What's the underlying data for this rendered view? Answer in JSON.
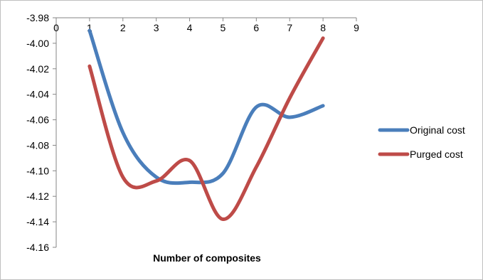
{
  "chart_data": {
    "type": "line",
    "title": "",
    "xlabel": "Number of composites",
    "ylabel": "",
    "xlim": [
      0,
      9
    ],
    "ylim": [
      -4.16,
      -3.98
    ],
    "x_ticks": [
      "0",
      "1",
      "2",
      "3",
      "4",
      "5",
      "6",
      "7",
      "8",
      "9"
    ],
    "y_ticks": [
      "-3.98",
      "-4.00",
      "-4.02",
      "-4.04",
      "-4.06",
      "-4.08",
      "-4.10",
      "-4.12",
      "-4.14",
      "-4.16"
    ],
    "grid": false,
    "smooth": true,
    "legend_position": "right",
    "x": [
      1,
      2,
      3,
      4,
      5,
      6,
      7,
      8
    ],
    "series": [
      {
        "name": "Original cost",
        "color": "#4A7EBB",
        "values": [
          -3.99,
          -4.07,
          -4.105,
          -4.109,
          -4.102,
          -4.05,
          -4.058,
          -4.049
        ]
      },
      {
        "name": "Purged cost",
        "color": "#BE4B48",
        "values": [
          -4.018,
          -4.105,
          -4.108,
          -4.092,
          -4.138,
          -4.097,
          -4.043,
          -3.996
        ]
      }
    ]
  }
}
